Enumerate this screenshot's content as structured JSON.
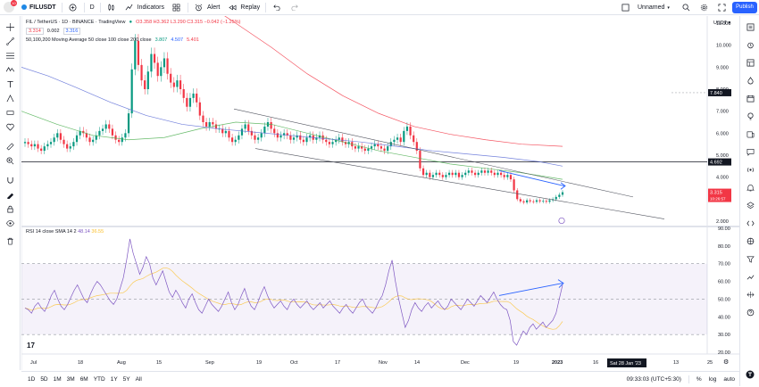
{
  "toolbar": {
    "badge_count": "10",
    "symbol": "FILUSDT",
    "interval": "D",
    "indicators": "Indicators",
    "alert": "Alert",
    "replay": "Replay",
    "layout_name": "Unnamed",
    "publish": "Publish"
  },
  "legend": {
    "title": "FIL / TetherUS · 1D · BINANCE · TradingView",
    "ohlc": "O3.358  H3.362  L3.290  C3.315  −0.042 (−1.25%)",
    "sell_price": "3.314",
    "spread": "0.002",
    "buy_price": "3.316",
    "ma_label": "50,100,200 Moving Average 50 close 100 close 200 close",
    "ma50": "3.807",
    "ma100": "4.507",
    "ma200": "5.401"
  },
  "rsi_legend": {
    "label": "RSI 14 close SMA 14 2",
    "rsi": "48.14",
    "sma": "36.55"
  },
  "price_axis": {
    "currency": "USDT",
    "ticks": [
      "11.000",
      "10.000",
      "9.000",
      "8.000",
      "7.000",
      "6.000",
      "5.000",
      "4.000",
      "3.000",
      "2.000"
    ],
    "marker_top": "7.840",
    "marker_line": "4.692",
    "last_price": "3.315",
    "countdown": "10:26:57"
  },
  "rsi_axis": {
    "ticks": [
      "90.00",
      "80.00",
      "70.00",
      "60.00",
      "50.00",
      "40.00",
      "30.00",
      "20.00"
    ]
  },
  "time_axis": {
    "labels": [
      "Jul",
      "18",
      "Aug",
      "15",
      "Sep",
      "19",
      "Oct",
      "17",
      "Nov",
      "14",
      "Dec",
      "19",
      "2023",
      "16",
      "13",
      "25"
    ],
    "crosshair_date": "Sat 28 Jan '23"
  },
  "bottom": {
    "ranges": [
      "1D",
      "5D",
      "1M",
      "3M",
      "6M",
      "YTD",
      "1Y",
      "5Y",
      "All"
    ],
    "clock": "09:33:03 (UTC+5:30)",
    "percent": "%",
    "log": "log",
    "auto": "auto"
  },
  "colors": {
    "up": "#089981",
    "down": "#f23645",
    "ma50": "#4caf50",
    "ma100": "#5b6bd6",
    "ma200": "#f23645",
    "rsi": "#7e57c2",
    "rsi_sma": "#fbc02d",
    "accent": "#2962ff"
  },
  "icons": {
    "top": [
      "avatar-icon",
      "add-symbol-icon",
      "indicators-icon",
      "templates-icon",
      "alert-icon",
      "replay-icon",
      "undo-icon",
      "redo-icon",
      "layout-icon",
      "search-icon",
      "settings-icon",
      "fullscreen-icon",
      "camera-icon"
    ],
    "left": [
      "crosshair-icon",
      "trendline-icon",
      "fib-icon",
      "pattern-icon",
      "text-icon",
      "prediction-icon",
      "measure-icon",
      "favorite-icon",
      "ruler-icon",
      "zoom-in-icon",
      "magnet-icon",
      "stay-in-drawing-icon",
      "lock-icon",
      "eye-icon",
      "trash-icon"
    ],
    "right": [
      "watchlist-icon",
      "alerts-icon",
      "data-window-icon",
      "hotlist-icon",
      "calendar-icon",
      "ideas-icon",
      "news-icon",
      "chat-icon",
      "streams-icon",
      "notifications-icon",
      "help-icon"
    ]
  }
}
